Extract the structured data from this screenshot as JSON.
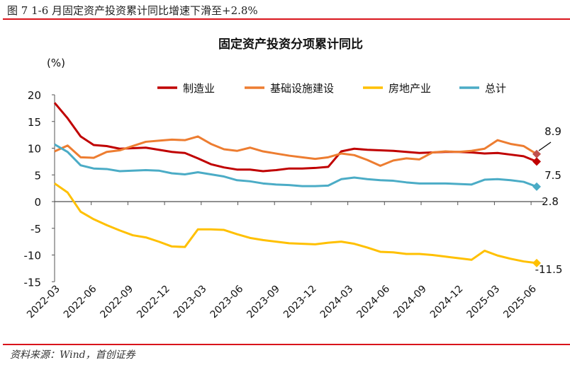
{
  "figure_title": "图  7 1-6 月固定资产投资累计同比增速下滑至+2.8%",
  "source": "资料来源：Wind，首创证券",
  "chart_data": {
    "type": "line",
    "title": "固定资产投资分项累计同比",
    "ylabel": "(%)",
    "xlabel": "",
    "ylim": [
      -15,
      20
    ],
    "yticks": [
      20,
      15,
      10,
      5,
      0,
      -5,
      -10,
      -15
    ],
    "xtick_labels": [
      "2022-03",
      "2022-06",
      "2022-09",
      "2022-12",
      "2023-03",
      "2023-06",
      "2023-09",
      "2023-12",
      "2024-03",
      "2024-06",
      "2024-09",
      "2024-12",
      "2025-03",
      "2025-06"
    ],
    "grid": false,
    "legend": "top",
    "series": [
      {
        "name": "制造业",
        "color": "#c00000",
        "end_label": "7.5",
        "values": [
          18.5,
          15.6,
          12.2,
          10.6,
          10.4,
          9.9,
          10.0,
          10.1,
          9.7,
          9.3,
          9.1,
          8.1,
          7.0,
          6.4,
          6.0,
          6.0,
          5.7,
          5.9,
          6.2,
          6.2,
          6.3,
          6.5,
          9.4,
          9.9,
          9.7,
          9.6,
          9.5,
          9.3,
          9.1,
          9.2,
          9.3,
          9.3,
          9.2,
          9.0,
          9.1,
          8.8,
          8.5,
          7.5
        ]
      },
      {
        "name": "基础设施建设",
        "color": "#ed7d31",
        "end_label": "8.9",
        "end_marker_color": "#c0504d",
        "values": [
          9.4,
          10.5,
          8.3,
          8.2,
          9.3,
          9.6,
          10.4,
          11.2,
          11.4,
          11.6,
          11.5,
          12.2,
          10.8,
          9.8,
          9.5,
          10.1,
          9.4,
          9.0,
          8.6,
          8.3,
          8.0,
          8.3,
          9.0,
          8.7,
          7.8,
          6.7,
          7.7,
          8.1,
          7.9,
          9.2,
          9.4,
          9.3,
          9.5,
          9.9,
          11.5,
          10.8,
          10.4,
          8.9
        ]
      },
      {
        "name": "房地产业",
        "color": "#ffc000",
        "end_label": "-11.5",
        "values": [
          3.4,
          1.7,
          -1.9,
          -3.3,
          -4.4,
          -5.4,
          -6.3,
          -6.7,
          -7.5,
          -8.4,
          -8.5,
          -5.2,
          -5.2,
          -5.3,
          -6.1,
          -6.8,
          -7.2,
          -7.5,
          -7.8,
          -7.9,
          -8.0,
          -7.7,
          -7.5,
          -7.9,
          -8.6,
          -9.4,
          -9.5,
          -9.8,
          -9.8,
          -10.0,
          -10.3,
          -10.6,
          -10.9,
          -9.2,
          -10.1,
          -10.7,
          -11.2,
          -11.5
        ]
      },
      {
        "name": "总计",
        "color": "#4bacc6",
        "end_label": "2.8",
        "values": [
          10.7,
          9.3,
          6.8,
          6.2,
          6.1,
          5.7,
          5.8,
          5.9,
          5.8,
          5.3,
          5.1,
          5.5,
          5.1,
          4.7,
          4.0,
          3.8,
          3.4,
          3.2,
          3.1,
          2.9,
          2.9,
          3.0,
          4.2,
          4.5,
          4.2,
          4.0,
          3.9,
          3.6,
          3.4,
          3.4,
          3.4,
          3.3,
          3.2,
          4.1,
          4.2,
          4.0,
          3.7,
          2.8
        ]
      }
    ]
  }
}
